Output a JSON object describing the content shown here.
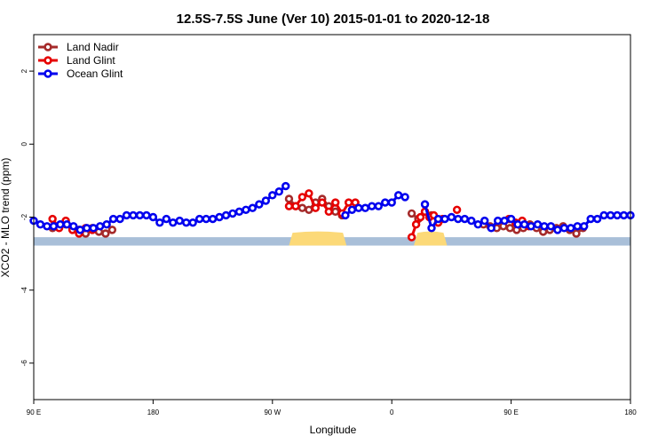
{
  "chart_data": {
    "type": "line",
    "title": "12.5S-7.5S June (Ver 10)   2015-01-01 to 2020-12-18",
    "xlabel": "Longitude",
    "ylabel": "XCO2 - MLO trend (ppm)",
    "xlim": [
      -90,
      180
    ],
    "ylim": [
      -7,
      3
    ],
    "x_ticks": [
      {
        "value": -90,
        "label": "90 E"
      },
      {
        "value": -36,
        "label": "180"
      },
      {
        "value": 18,
        "label": "90 W"
      },
      {
        "value": 72,
        "label": "0"
      },
      {
        "value": 126,
        "label": "90 E"
      },
      {
        "value": 180,
        "label": "180"
      }
    ],
    "y_ticks": [
      {
        "value": 2,
        "label": "2"
      },
      {
        "value": 0,
        "label": "0"
      },
      {
        "value": -2,
        "label": "-2"
      },
      {
        "value": -4,
        "label": "-4"
      },
      {
        "value": -6,
        "label": "-6"
      }
    ],
    "legend_position": "top-left",
    "land_band": {
      "y_top": -2.55,
      "y_bottom": -2.78,
      "ocean_color": "#a9bfd8",
      "land_color": "#fcd978",
      "land_segments": [
        [
          25.5,
          51.5
        ],
        [
          82,
          97
        ]
      ]
    },
    "series": [
      {
        "name": "Land Nadir",
        "color": "#a52a2a",
        "segments": [
          {
            "x": [
              -81.5,
              -78.5,
              -75.5,
              -72.5,
              -69.5,
              -66.5,
              -63.5,
              -60.5,
              -57.5,
              -54.5
            ],
            "y": [
              -2.3,
              -2.25,
              -2.2,
              -2.3,
              -2.35,
              -2.45,
              -2.3,
              -2.4,
              -2.45,
              -2.35
            ]
          },
          {
            "x": [
              25.5,
              28.5,
              31.5,
              34.5,
              37.5,
              40.5,
              43.5,
              46.5,
              49.5
            ],
            "y": [
              -1.5,
              -1.7,
              -1.75,
              -1.8,
              -1.6,
              -1.5,
              -1.7,
              -1.85,
              -1.95
            ]
          },
          {
            "x": [
              81,
              84,
              87,
              90,
              93
            ],
            "y": [
              -1.9,
              -2.05,
              -1.85,
              -1.95,
              -2.15
            ]
          },
          {
            "x": [
              113.5,
              116.5,
              119.5,
              122.5,
              125.5,
              128.5,
              131.5,
              134.5,
              137.5,
              140.5,
              143.5,
              146.5,
              149.5,
              152.5,
              155.5,
              158.5
            ],
            "y": [
              -2.2,
              -2.25,
              -2.3,
              -2.25,
              -2.3,
              -2.35,
              -2.3,
              -2.2,
              -2.3,
              -2.4,
              -2.35,
              -2.3,
              -2.25,
              -2.35,
              -2.45,
              -2.3
            ]
          }
        ]
      },
      {
        "name": "Land Glint",
        "color": "#e60000",
        "segments": [
          {
            "x": [
              -81.5,
              -78.5,
              -75.5,
              -72.5,
              -69.5,
              -66.5,
              -63.5
            ],
            "y": [
              -2.05,
              -2.3,
              -2.1,
              -2.35,
              -2.45,
              -2.3,
              -2.35
            ]
          },
          {
            "x": [
              25.5,
              28.5,
              31.5,
              34.5,
              37.5,
              40.5,
              43.5,
              46.5,
              49.5,
              52.5,
              55.5
            ],
            "y": [
              -1.7,
              -1.7,
              -1.45,
              -1.35,
              -1.75,
              -1.6,
              -1.85,
              -1.6,
              -1.9,
              -1.6,
              -1.6
            ]
          },
          {
            "x": [
              81,
              83,
              85,
              87,
              89,
              91,
              93,
              95
            ],
            "y": [
              -2.55,
              -2.2,
              -2.0,
              -1.85,
              -2.0,
              -1.95,
              -2.15,
              -2.05
            ]
          },
          {
            "x": [
              101.5
            ],
            "y": [
              -1.8
            ]
          },
          {
            "x": [
              125,
              128,
              131,
              134
            ],
            "y": [
              -2.05,
              -2.15,
              -2.1,
              -2.25
            ]
          }
        ]
      },
      {
        "name": "Ocean Glint",
        "color": "#0000ee",
        "segments": [
          {
            "x": [
              -90,
              -87,
              -84,
              -81,
              -78,
              -75,
              -72,
              -69,
              -66,
              -63,
              -60,
              -57,
              -54,
              -51,
              -48,
              -45,
              -42,
              -39,
              -36,
              -33,
              -30,
              -27,
              -24,
              -21,
              -18,
              -15,
              -12,
              -9,
              -6,
              -3,
              0,
              3,
              6,
              9,
              12,
              15,
              18,
              21,
              24
            ],
            "y": [
              -2.1,
              -2.2,
              -2.25,
              -2.25,
              -2.2,
              -2.2,
              -2.25,
              -2.35,
              -2.3,
              -2.3,
              -2.25,
              -2.2,
              -2.05,
              -2.05,
              -1.95,
              -1.95,
              -1.95,
              -1.95,
              -2.0,
              -2.15,
              -2.05,
              -2.15,
              -2.1,
              -2.15,
              -2.15,
              -2.05,
              -2.05,
              -2.05,
              -2.0,
              -1.95,
              -1.9,
              -1.85,
              -1.8,
              -1.75,
              -1.65,
              -1.55,
              -1.4,
              -1.3,
              -1.15
            ]
          },
          {
            "x": [
              51,
              54,
              57,
              60,
              63,
              66,
              69,
              72,
              75,
              78
            ],
            "y": [
              -1.95,
              -1.8,
              -1.75,
              -1.75,
              -1.7,
              -1.7,
              -1.6,
              -1.6,
              -1.4,
              -1.45
            ]
          },
          {
            "x": [
              87,
              90,
              93,
              96,
              99,
              102,
              105,
              108,
              111,
              114,
              117,
              120,
              123,
              126,
              129,
              132,
              135,
              138,
              141,
              144,
              147,
              150,
              153,
              156,
              159,
              162,
              165,
              168,
              171,
              174,
              177,
              180
            ],
            "y": [
              -1.65,
              -2.3,
              -2.05,
              -2.05,
              -2.0,
              -2.05,
              -2.05,
              -2.1,
              -2.2,
              -2.1,
              -2.3,
              -2.1,
              -2.1,
              -2.05,
              -2.2,
              -2.2,
              -2.25,
              -2.2,
              -2.25,
              -2.25,
              -2.35,
              -2.3,
              -2.3,
              -2.25,
              -2.25,
              -2.05,
              -2.05,
              -1.95,
              -1.95,
              -1.95,
              -1.95,
              -1.95
            ]
          }
        ]
      }
    ]
  }
}
